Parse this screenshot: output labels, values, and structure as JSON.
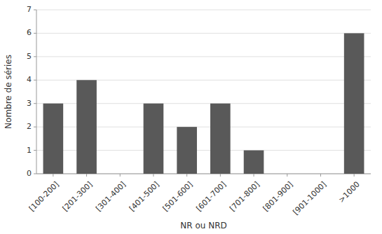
{
  "chart_data": {
    "type": "bar",
    "categories": [
      "[100-200]",
      "[201-300]",
      "[301-400]",
      "[401-500]",
      "[501-600]",
      "[601-700]",
      "[701-800]",
      "[801-900]",
      "[901-1000]",
      ">1000"
    ],
    "values": [
      3,
      4,
      0,
      3,
      2,
      3,
      1,
      0,
      0,
      6
    ],
    "color": "#595959",
    "xlabel": "NR ou NRD",
    "ylabel": "Nombre de séries",
    "ylim": [
      0,
      7
    ],
    "yticks": [
      0,
      1,
      2,
      3,
      4,
      5,
      6,
      7
    ],
    "grid": true
  }
}
